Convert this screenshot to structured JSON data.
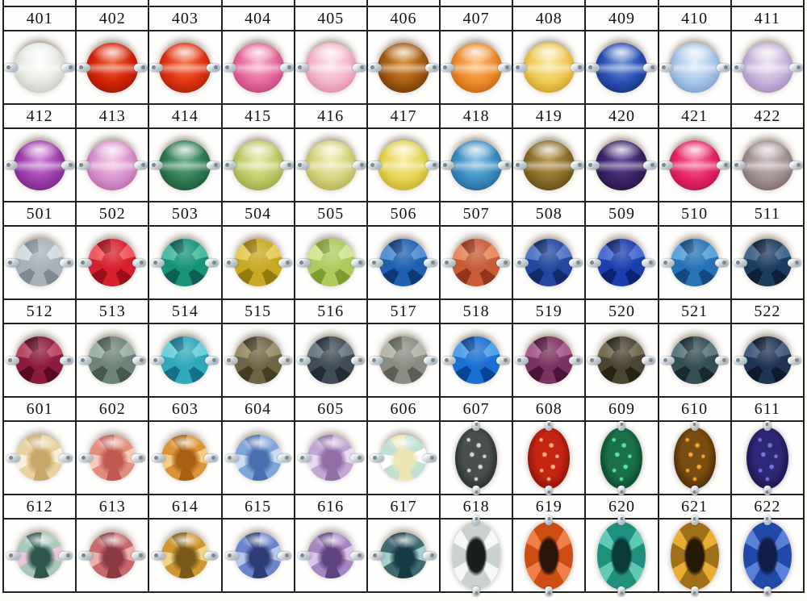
{
  "colors": {
    "page_background": "#fbfbf8",
    "cell_background": "#fefefd",
    "grid_border": "#202020",
    "label_text": "#131313",
    "metal_prong": "#c3cdd3"
  },
  "table": {
    "columns": 11,
    "sections": [
      {
        "gems": [
          {
            "code": "401",
            "finish": "trans",
            "c1": "#e6e9e2",
            "c2": "#b9c0b6",
            "c3": "#ffffff"
          },
          {
            "code": "402",
            "finish": "trans",
            "c1": "#d42408",
            "c2": "#8e1202",
            "c3": "#f06a40"
          },
          {
            "code": "403",
            "finish": "trans",
            "c1": "#e03512",
            "c2": "#9c1804",
            "c3": "#f57c50"
          },
          {
            "code": "404",
            "finish": "trans",
            "c1": "#e4679c",
            "c2": "#b63b74",
            "c3": "#f7b8d4"
          },
          {
            "code": "405",
            "finish": "trans",
            "c1": "#f3b5ca",
            "c2": "#d87fa4",
            "c3": "#fde4ee"
          },
          {
            "code": "406",
            "finish": "trans",
            "c1": "#a65c12",
            "c2": "#5e2e04",
            "c3": "#d99440"
          },
          {
            "code": "407",
            "finish": "trans",
            "c1": "#ee8c2e",
            "c2": "#b85808",
            "c3": "#fcc27c"
          },
          {
            "code": "408",
            "finish": "trans",
            "c1": "#eec952",
            "c2": "#c09018",
            "c3": "#fbeaa8"
          },
          {
            "code": "409",
            "finish": "trans",
            "c1": "#2a50b4",
            "c2": "#12276e",
            "c3": "#7a9ad8"
          },
          {
            "code": "410",
            "finish": "trans",
            "c1": "#a9c6e8",
            "c2": "#6f93c4",
            "c3": "#e2eefa"
          },
          {
            "code": "411",
            "finish": "trans",
            "c1": "#c7b2da",
            "c2": "#9a7fb4",
            "c3": "#efe6f7"
          }
        ]
      },
      {
        "gems": [
          {
            "code": "412",
            "finish": "trans",
            "c1": "#a03fae",
            "c2": "#641f74",
            "c3": "#d48ade"
          },
          {
            "code": "413",
            "finish": "trans",
            "c1": "#d993cc",
            "c2": "#ad5ba0",
            "c3": "#f3ccea"
          },
          {
            "code": "414",
            "finish": "trans",
            "c1": "#2f7c54",
            "c2": "#174a2e",
            "c3": "#6cb08a"
          },
          {
            "code": "415",
            "finish": "trans",
            "c1": "#bfc968",
            "c2": "#8e9c38",
            "c3": "#e6ecac"
          },
          {
            "code": "416",
            "finish": "trans",
            "c1": "#d6d27c",
            "c2": "#a8a448",
            "c3": "#f0eeb8"
          },
          {
            "code": "417",
            "finish": "trans",
            "c1": "#e4d452",
            "c2": "#b4a41e",
            "c3": "#f6eea0"
          },
          {
            "code": "418",
            "finish": "trans",
            "c1": "#3c8ec2",
            "c2": "#1c5a8c",
            "c3": "#8cc4e4"
          },
          {
            "code": "419",
            "finish": "trans",
            "c1": "#8a6e2a",
            "c2": "#55400e",
            "c3": "#b89c54"
          },
          {
            "code": "420",
            "finish": "trans",
            "c1": "#3c2468",
            "c2": "#1c0e38",
            "c3": "#6a4a9c"
          },
          {
            "code": "421",
            "finish": "trans",
            "c1": "#e62566",
            "c2": "#a80e40",
            "c3": "#f676a4"
          },
          {
            "code": "422",
            "finish": "trans",
            "c1": "#a29092",
            "c2": "#6f5e60",
            "c3": "#cbbcbe"
          }
        ]
      },
      {
        "gems": [
          {
            "code": "501",
            "finish": "opaque",
            "c1": "#a9b2ba",
            "c2": "#7e8a94",
            "c3": "#d4dce2"
          },
          {
            "code": "502",
            "finish": "opaque",
            "c1": "#d6202e",
            "c2": "#9e0e1a",
            "c3": "#ee5a62"
          },
          {
            "code": "503",
            "finish": "opaque",
            "c1": "#17937c",
            "c2": "#0a6152",
            "c3": "#4cbaa4"
          },
          {
            "code": "504",
            "finish": "opaque",
            "c1": "#c9a922",
            "c2": "#937a0c",
            "c3": "#e6cc5a"
          },
          {
            "code": "505",
            "finish": "opaque",
            "c1": "#aecb60",
            "c2": "#7e9c34",
            "c3": "#d2e696"
          },
          {
            "code": "506",
            "finish": "opaque",
            "c1": "#1f60b0",
            "c2": "#0e3a78",
            "c3": "#5590d4"
          },
          {
            "code": "507",
            "finish": "opaque",
            "c1": "#c75c36",
            "c2": "#93351a",
            "c3": "#e68c62"
          },
          {
            "code": "508",
            "finish": "opaque",
            "c1": "#23479e",
            "c2": "#102a6a",
            "c3": "#5578c4"
          },
          {
            "code": "509",
            "finish": "opaque",
            "c1": "#1c3fae",
            "c2": "#0c2272",
            "c3": "#4c6cd0"
          },
          {
            "code": "510",
            "finish": "opaque",
            "c1": "#2673b6",
            "c2": "#124a80",
            "c3": "#5ca2d8"
          },
          {
            "code": "511",
            "finish": "opaque",
            "c1": "#1d3c60",
            "c2": "#0c2038",
            "c3": "#46688c"
          }
        ]
      },
      {
        "gems": [
          {
            "code": "512",
            "finish": "opaque",
            "c1": "#8e1a3e",
            "c2": "#570a22",
            "c3": "#b84a68"
          },
          {
            "code": "513",
            "finish": "opaque",
            "c1": "#6e8479",
            "c2": "#46584e",
            "c3": "#9cb2a6"
          },
          {
            "code": "514",
            "finish": "opaque",
            "c1": "#2fa9bc",
            "c2": "#13708a",
            "c3": "#6cd0dc"
          },
          {
            "code": "515",
            "finish": "opaque",
            "c1": "#6f6445",
            "c2": "#443c24",
            "c3": "#9a8f6c"
          },
          {
            "code": "516",
            "finish": "opaque",
            "c1": "#404c58",
            "c2": "#222c36",
            "c3": "#6c7a88"
          },
          {
            "code": "517",
            "finish": "opaque",
            "c1": "#8a8d83",
            "c2": "#5c5f56",
            "c3": "#b4b7ac"
          },
          {
            "code": "518",
            "finish": "opaque",
            "c1": "#1a70d2",
            "c2": "#0a4494",
            "c3": "#54a0e8"
          },
          {
            "code": "519",
            "finish": "opaque",
            "c1": "#7c3260",
            "c2": "#4c1438",
            "c3": "#a8608c"
          },
          {
            "code": "520",
            "finish": "opaque",
            "c1": "#4a4430",
            "c2": "#262214",
            "c3": "#746c50"
          },
          {
            "code": "521",
            "finish": "opaque",
            "c1": "#334e54",
            "c2": "#182a30",
            "c3": "#5c7c82"
          },
          {
            "code": "522",
            "finish": "opaque",
            "c1": "#1e3452",
            "c2": "#0c1a2e",
            "c3": "#45607f"
          }
        ]
      },
      {
        "gems": [
          {
            "code": "601",
            "finish": "ab",
            "c1": "#e8d3a0",
            "c2": "#c8a868",
            "c3": "#f8f0dc"
          },
          {
            "code": "602",
            "finish": "ab",
            "c1": "#e38d7e",
            "c2": "#c05a50",
            "c3": "#f8cabc"
          },
          {
            "code": "603",
            "finish": "ab",
            "c1": "#dc9338",
            "c2": "#a85f12",
            "c3": "#f6cc84"
          },
          {
            "code": "604",
            "finish": "ab",
            "c1": "#7fa5da",
            "c2": "#4a6eae",
            "c3": "#cadef4"
          },
          {
            "code": "605",
            "finish": "ab",
            "c1": "#c3a6d2",
            "c2": "#8f6fa6",
            "c3": "#ecd9f2"
          },
          {
            "code": "606",
            "finish": "ab",
            "c1": "#bfe0d2",
            "c2": "#ece6b4",
            "c3": "#ffffff"
          },
          {
            "code": "607",
            "finish": "glitter",
            "c1": "#49504b",
            "c2": "#202622",
            "c3": "#6a726c",
            "g": "#d2dad6"
          },
          {
            "code": "608",
            "finish": "glitter",
            "c1": "#c62412",
            "c2": "#7c0e04",
            "c3": "#e65a38",
            "g": "#ffb088"
          },
          {
            "code": "609",
            "finish": "glitter",
            "c1": "#1a7048",
            "c2": "#083c24",
            "c3": "#2f9460",
            "g": "#5ce69c"
          },
          {
            "code": "610",
            "finish": "glitter",
            "c1": "#7a4c12",
            "c2": "#3e2404",
            "c3": "#a06c1e",
            "g": "#f6a829"
          },
          {
            "code": "611",
            "finish": "glitter",
            "c1": "#2e2878",
            "c2": "#14103e",
            "c3": "#46409e",
            "g": "#7a74e0"
          }
        ]
      },
      {
        "gems": [
          {
            "code": "612",
            "finish": "ab",
            "c1": "#a8c8bc",
            "c2": "#2e554e",
            "c3": "#e8c8d8"
          },
          {
            "code": "613",
            "finish": "ab",
            "c1": "#c66a6e",
            "c2": "#8c3a42",
            "c3": "#eeb0a8"
          },
          {
            "code": "614",
            "finish": "ab",
            "c1": "#cf9734",
            "c2": "#7a5a18",
            "c3": "#f2d488"
          },
          {
            "code": "615",
            "finish": "ab",
            "c1": "#6b85cc",
            "c2": "#2c3c74",
            "c3": "#b8c8ec"
          },
          {
            "code": "616",
            "finish": "ab",
            "c1": "#a586c2",
            "c2": "#5f4480",
            "c3": "#dcc4e8"
          },
          {
            "code": "617",
            "finish": "ab",
            "c1": "#3e6a70",
            "c2": "#173b44",
            "c3": "#a8d0cc"
          },
          {
            "code": "618",
            "finish": "facet",
            "c1": "#c9d2cf",
            "c2": "#181f1c",
            "c3": "#f4f8f6"
          },
          {
            "code": "619",
            "finish": "facet",
            "c1": "#cc4e14",
            "c2": "#2e1408",
            "c3": "#f08048"
          },
          {
            "code": "620",
            "finish": "facet",
            "c1": "#20907e",
            "c2": "#0c3a38",
            "c3": "#60c8b4"
          },
          {
            "code": "621",
            "finish": "facet",
            "c1": "#a07018",
            "c2": "#241a06",
            "c3": "#e8ae32"
          },
          {
            "code": "622",
            "finish": "facet",
            "c1": "#2248a8",
            "c2": "#101f48",
            "c3": "#5a80d8"
          }
        ]
      }
    ]
  }
}
